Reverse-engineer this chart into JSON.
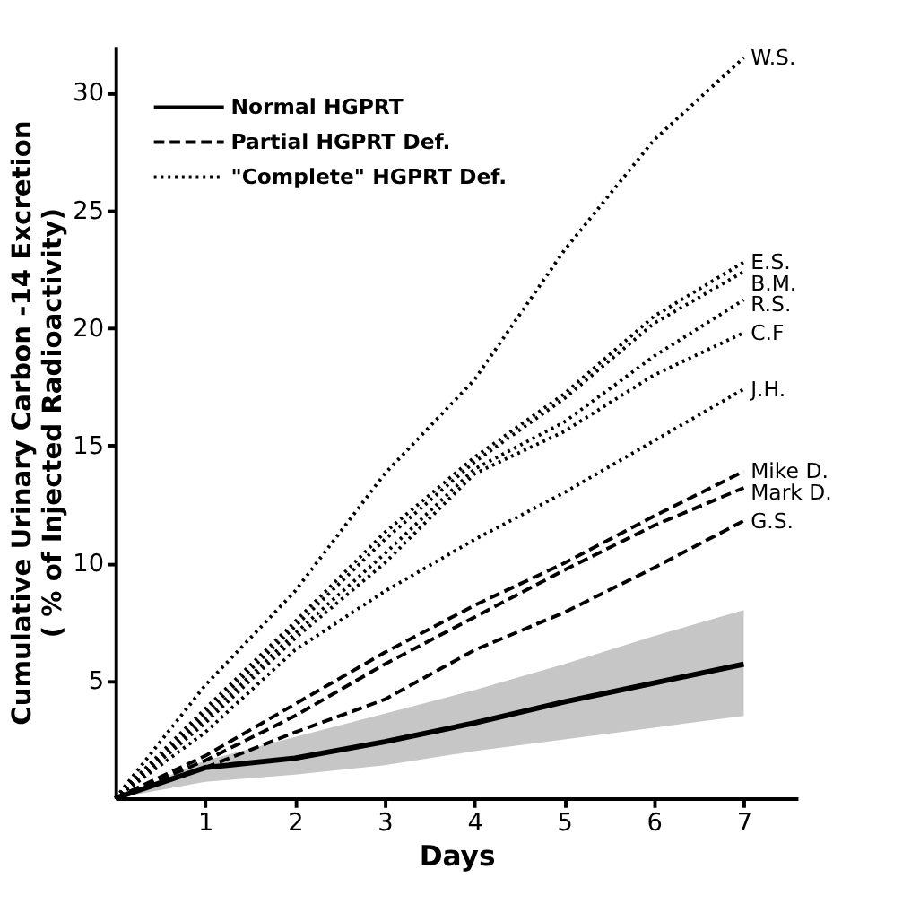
{
  "chart_data": {
    "type": "line",
    "xlabel": "Days",
    "ylabel": "Cumulative Urinary Carbon -14 Excretion\n( % of Injected Radioactivity)",
    "x": [
      0,
      1,
      2,
      3,
      4,
      5,
      6,
      7
    ],
    "xlim": [
      0,
      7.6
    ],
    "xticks": [
      1,
      2,
      3,
      4,
      5,
      6,
      7
    ],
    "ylim": [
      0,
      32
    ],
    "yticks": [
      5,
      10,
      15,
      20,
      25,
      30
    ],
    "grid": false,
    "marker": "none",
    "annotations": [
      "Normal HGPRT",
      "Partial HGPRT Def.",
      "\"Complete\" HGPRT Def."
    ],
    "series": [
      {
        "color": "#000000",
        "line_style": "solid",
        "values": [
          0,
          1.3,
          1.7,
          2.4,
          3.2,
          4.1,
          4.9,
          5.7
        ],
        "lower": [
          0,
          0.7,
          1.0,
          1.4,
          2.0,
          2.5,
          3.0,
          3.5
        ],
        "upper": [
          0,
          1.6,
          2.6,
          3.6,
          4.6,
          5.7,
          6.9,
          8.0
        ]
      },
      {
        "name": "Mike D.",
        "color": "#000000",
        "line_style": "dashed",
        "values": [
          0,
          1.8,
          4.0,
          6.2,
          8.2,
          10.0,
          12.0,
          13.9
        ]
      },
      {
        "name": "Mark D.",
        "color": "#000000",
        "line_style": "dashed",
        "values": [
          0,
          1.6,
          3.5,
          5.7,
          7.7,
          9.7,
          11.6,
          13.2
        ]
      },
      {
        "name": "G.S.",
        "color": "#000000",
        "line_style": "dashed",
        "values": [
          0,
          1.3,
          2.8,
          4.2,
          6.3,
          7.9,
          9.8,
          11.8
        ]
      },
      {
        "name": "W.S.",
        "color": "#000000",
        "line_style": "dotted",
        "values": [
          0,
          4.8,
          8.8,
          13.8,
          17.8,
          23.3,
          28.0,
          31.5
        ]
      },
      {
        "name": "E.S.",
        "color": "#000000",
        "line_style": "dotted",
        "values": [
          0,
          3.8,
          7.5,
          11.3,
          14.5,
          17.2,
          20.5,
          22.8
        ]
      },
      {
        "name": "B.M.",
        "color": "#000000",
        "line_style": "dotted",
        "values": [
          0,
          3.6,
          7.3,
          11.0,
          14.3,
          17.0,
          20.2,
          22.4
        ]
      },
      {
        "name": "R.S.",
        "color": "#000000",
        "line_style": "dotted",
        "values": [
          0,
          3.4,
          7.0,
          10.4,
          14.0,
          16.0,
          18.8,
          21.2
        ]
      },
      {
        "name": "C.F",
        "color": "#000000",
        "line_style": "dotted",
        "values": [
          0,
          3.2,
          6.8,
          10.0,
          13.8,
          15.6,
          18.0,
          19.8
        ]
      },
      {
        "name": "J.H.",
        "color": "#000000",
        "line_style": "dotted",
        "values": [
          0,
          2.8,
          6.3,
          8.8,
          11.0,
          13.0,
          15.2,
          17.4
        ]
      }
    ]
  }
}
